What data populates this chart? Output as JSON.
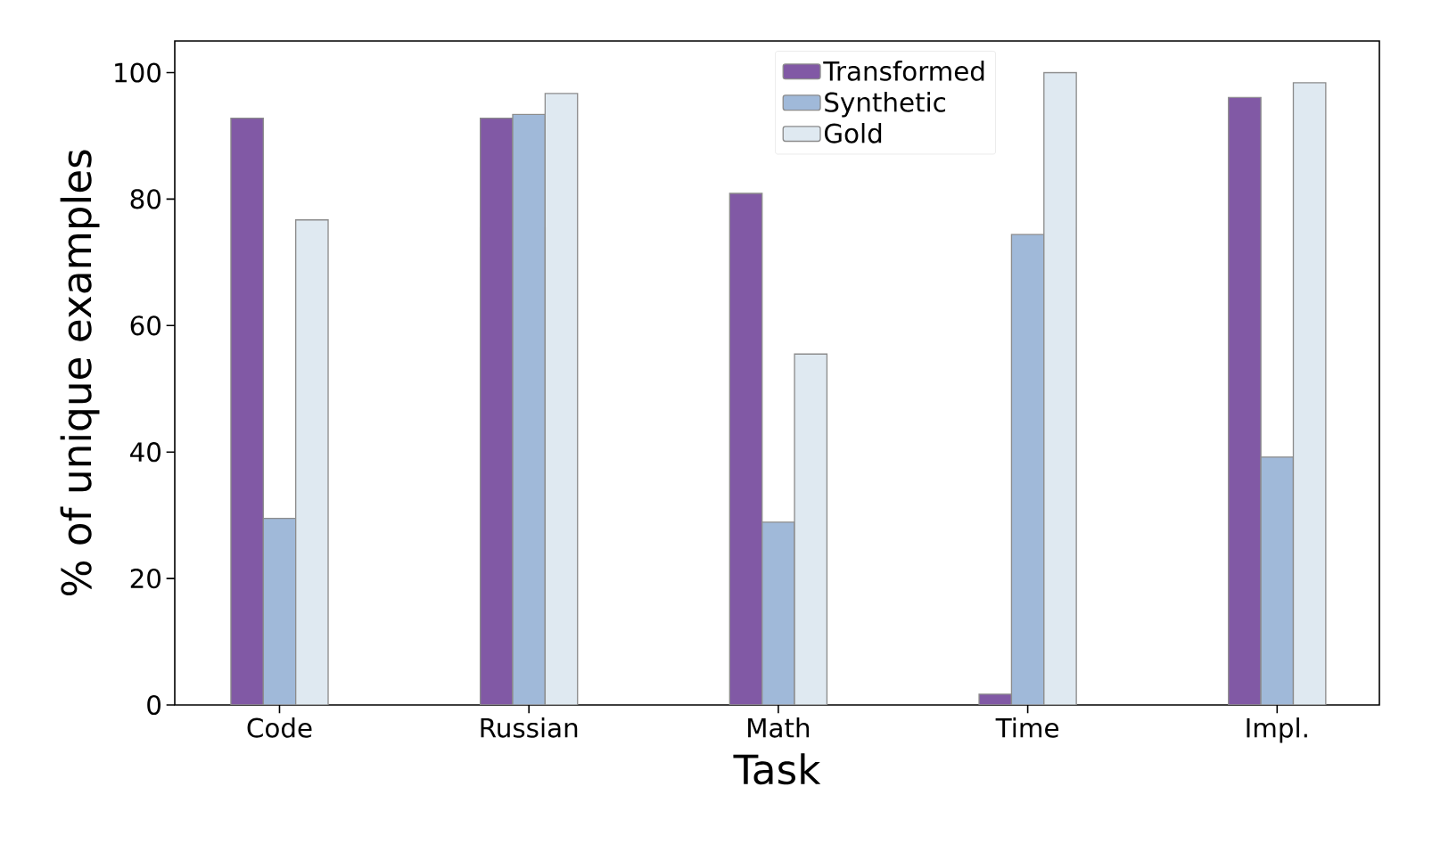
{
  "chart_data": {
    "type": "bar",
    "xlabel": "Task",
    "ylabel": "% of unique examples",
    "categories": [
      "Code",
      "Russian",
      "Math",
      "Time",
      "Impl."
    ],
    "series": [
      {
        "name": "Transformed",
        "color": "#8159a5",
        "values": [
          92.8,
          92.8,
          80.9,
          1.7,
          96.1
        ]
      },
      {
        "name": "Synthetic",
        "color": "#a0b9d9",
        "values": [
          29.5,
          93.4,
          28.9,
          74.4,
          39.2
        ]
      },
      {
        "name": "Gold",
        "color": "#dfe9f1",
        "values": [
          76.7,
          96.7,
          55.5,
          100,
          98.4
        ]
      }
    ],
    "ylim": [
      0,
      105
    ],
    "yticks": [
      0,
      20,
      40,
      60,
      80,
      100
    ],
    "grid": false,
    "legend": "top"
  }
}
